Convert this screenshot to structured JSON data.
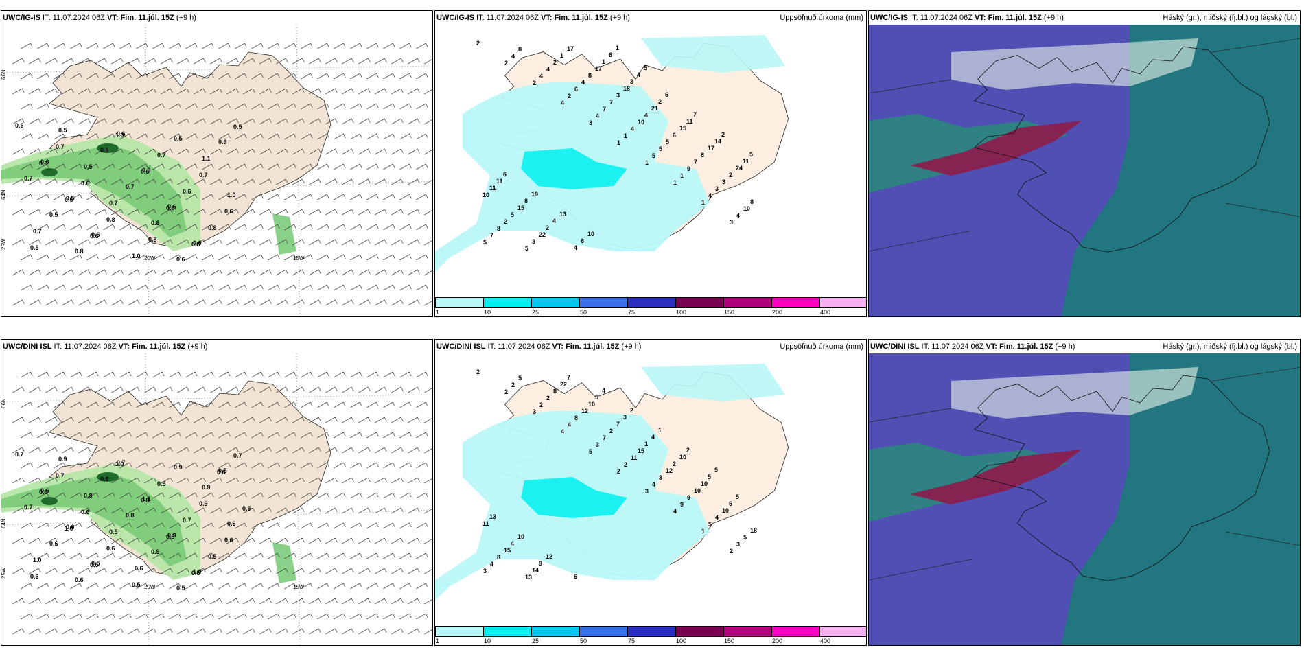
{
  "panels": [
    {
      "title_model": "UWC/IG-IS",
      "title_it": " IT: 11.07.2024 06Z ",
      "title_vt_label": "VT:",
      "title_vt": " Fim. 11.júl. 15Z",
      "title_lead": " (+9 h)",
      "right_label": ""
    },
    {
      "title_model": "UWC/IG-IS",
      "title_it": " IT: 11.07.2024 06Z ",
      "title_vt_label": "VT:",
      "title_vt": " Fim. 11.júl. 15Z",
      "title_lead": " (+9 h)",
      "right_label": "Uppsöfnuð úrkoma (mm)"
    },
    {
      "title_model": "UWC/IG-IS",
      "title_it": " IT: 11.07.2024 06Z ",
      "title_vt_label": "VT:",
      "title_vt": " Fim. 11.júl. 15Z",
      "title_lead": " (+9 h)",
      "right_label": "Háský (gr.), miðský (fj.bl.) og lágský (bl.)"
    },
    {
      "title_model": "UWC/DINI ISL",
      "title_it": " IT: 11.07.2024 06Z ",
      "title_vt_label": "VT:",
      "title_vt": " Fim. 11.júl. 15Z",
      "title_lead": " (+9 h)",
      "right_label": ""
    },
    {
      "title_model": "UWC/DINI ISL",
      "title_it": " IT: 11.07.2024 06Z ",
      "title_vt_label": "VT:",
      "title_vt": " Fim. 11.júl. 15Z",
      "title_lead": " (+9 h)",
      "right_label": "Uppsöfnuð úrkoma (mm)"
    },
    {
      "title_model": "UWC/DINI ISL",
      "title_it": " IT: 11.07.2024 06Z ",
      "title_vt_label": "VT:",
      "title_vt": " Fim. 11.júl. 15Z",
      "title_lead": " (+9 h)",
      "right_label": "Háský (gr.), miðský (fj.bl.) og lágský (bl.)"
    }
  ],
  "axis_labels": {
    "lat66": "66N",
    "lat64": "64N",
    "lat63": "63N",
    "lon25": "25W",
    "lon20": "20W",
    "lon15": "15W"
  },
  "colorbar": {
    "ticks": [
      "1",
      "10",
      "25",
      "50",
      "75",
      "100",
      "150",
      "200",
      "400"
    ],
    "colors": [
      "#b9f7f7",
      "#00f0f0",
      "#00c8ee",
      "#3a6fe8",
      "#2a2fbf",
      "#7a0050",
      "#b0007a",
      "#ff00c0",
      "#f5b0f0"
    ]
  },
  "colors": {
    "land": "#f1e4d4",
    "land_light": "#fcefe2",
    "precip_light": "#b9f7f7",
    "precip_mid": "#00f0f0",
    "green_light": "#b6e6a8",
    "green_mid": "#6cc46c",
    "green_dark": "#1e6a2a",
    "cloud_high": "#4f4fb4",
    "cloud_mid": "#1c7a7a",
    "cloud_low": "#8b1f4e"
  },
  "wind_labels_top": [
    "0.6",
    "0.6",
    "0.5",
    "0.6",
    "0.6",
    "0.9",
    "0.6",
    "0.6",
    "0.6",
    "0.7",
    "0.5",
    "0.8",
    "0.9",
    "0.7",
    "0.8",
    "0.6",
    "1.1",
    "1.0",
    "0.7",
    "0.5",
    "0.5",
    "0.7",
    "0.8",
    "0.5",
    "0.7",
    "0.6",
    "0.5",
    "0.7",
    "0.6",
    "0.8",
    "1.0",
    "0.7",
    "0.6",
    "0.8",
    "0.5",
    "0.6",
    "0.5",
    "0.6",
    "1.0",
    "0.6",
    "0.8",
    "0.8"
  ],
  "wind_labels_bottom": [
    "0.7",
    "0.6",
    "0.6",
    "0.5",
    "0.7",
    "1.1",
    "0.9",
    "1.0",
    "0.5",
    "0.7",
    "0.6",
    "0.6",
    "0.6",
    "0.8",
    "0.9",
    "0.5",
    "0.9",
    "0.6",
    "1.0",
    "0.9",
    "0.8",
    "0.5",
    "0.6",
    "0.9",
    "0.9",
    "0.6",
    "0.6",
    "0.7",
    "0.6",
    "0.6",
    "0.5",
    "0.5",
    "0.7",
    "0.5",
    "0.7",
    "0.6",
    "1.0",
    "0.5",
    "1.0",
    "0.8",
    "0.8",
    "0.5",
    "0.6",
    "0.5"
  ],
  "precip_labels_top": [
    "2",
    "2",
    "2",
    "4",
    "3",
    "1",
    "1",
    "1",
    "1",
    "3",
    "5",
    "4",
    "4",
    "2",
    "4",
    "1",
    "5",
    "1",
    "4",
    "4",
    "7",
    "8",
    "4",
    "6",
    "7",
    "4",
    "5",
    "9",
    "3",
    "10",
    "8",
    "5",
    "2",
    "4",
    "7",
    "10",
    "5",
    "7",
    "3",
    "8",
    "2",
    "3",
    "1",
    "8",
    "3",
    "4",
    "6",
    "8",
    "2",
    "10",
    "5",
    "22",
    "17",
    "17",
    "18",
    "21",
    "15",
    "17",
    "24",
    "11",
    "15",
    "2",
    "4",
    "1",
    "3",
    "2",
    "11",
    "14",
    "11",
    "11",
    "8",
    "4",
    "6",
    "6",
    "4",
    "6",
    "7",
    "2",
    "5",
    "6",
    "19",
    "13",
    "10",
    "1",
    "5"
  ],
  "precip_labels_bottom": [
    "2",
    "2",
    "3",
    "4",
    "5",
    "2",
    "3",
    "4",
    "1",
    "2",
    "3",
    "2",
    "2",
    "4",
    "3",
    "2",
    "4",
    "9",
    "5",
    "3",
    "4",
    "5",
    "2",
    "8",
    "7",
    "11",
    "3",
    "9",
    "4",
    "5",
    "8",
    "13",
    "8",
    "12",
    "2",
    "15",
    "12",
    "10",
    "10",
    "18",
    "15",
    "14",
    "22",
    "10",
    "7",
    "1",
    "2",
    "10",
    "6",
    "11",
    "4",
    "9",
    "7",
    "5",
    "3",
    "4",
    "10",
    "5",
    "5",
    "13",
    "10",
    "12",
    "6",
    "4",
    "2",
    "1",
    "2",
    "5"
  ]
}
